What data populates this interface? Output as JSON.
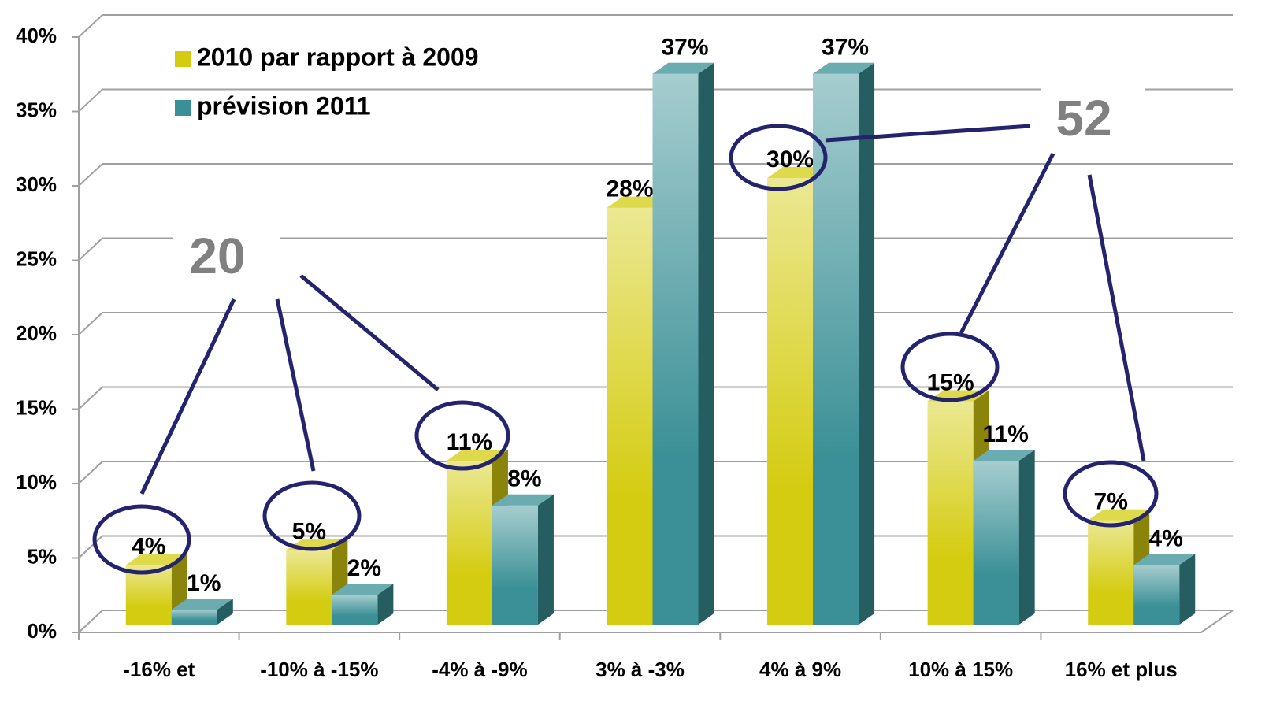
{
  "chart_data": {
    "type": "bar3d",
    "categories": [
      "-16% et",
      "-10% à -15%",
      "-4% à -9%",
      "3% à -3%",
      "4% à 9%",
      "10% à 15%",
      "16% et plus"
    ],
    "series": [
      {
        "name": "2010 par rapport à 2009",
        "color": "#d4cc10",
        "values": [
          4,
          5,
          11,
          28,
          30,
          15,
          7
        ],
        "value_labels": [
          "4%",
          "5%",
          "11%",
          "28%",
          "30%",
          "15%",
          "7%"
        ]
      },
      {
        "name": "prévision 2011",
        "color": "#3a9096",
        "values": [
          1,
          2,
          8,
          37,
          37,
          11,
          4
        ],
        "value_labels": [
          "1%",
          "2%",
          "8%",
          "37%",
          "37%",
          "11%",
          "4%"
        ]
      }
    ],
    "ylim": [
      0,
      40
    ],
    "yticks": [
      {
        "value": 0,
        "label": "0%"
      },
      {
        "value": 5,
        "label": "5%"
      },
      {
        "value": 10,
        "label": "10%"
      },
      {
        "value": 15,
        "label": "15%"
      },
      {
        "value": 20,
        "label": "20%"
      },
      {
        "value": 25,
        "label": "25%"
      },
      {
        "value": 30,
        "label": "30%"
      },
      {
        "value": 35,
        "label": "35%"
      },
      {
        "value": 40,
        "label": "40%"
      }
    ],
    "grid": true,
    "annotations": [
      "20",
      "52"
    ]
  }
}
